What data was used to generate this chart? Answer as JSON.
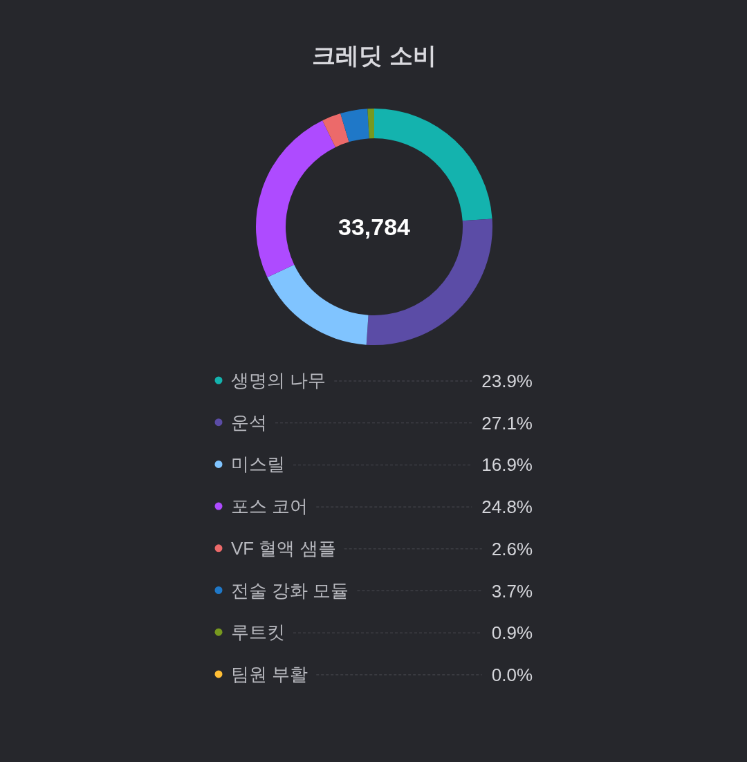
{
  "chart_data": {
    "type": "donut",
    "title": "크레딧 소비",
    "categories": [
      "생명의 나무",
      "운석",
      "미스릴",
      "포스 코어",
      "VF 혈액 샘플",
      "전술 강화 모듈",
      "루트킷",
      "팀원 부활"
    ],
    "values": [
      23.9,
      27.1,
      16.9,
      24.8,
      2.6,
      3.7,
      0.9,
      0.0
    ],
    "value_labels": [
      "23.9%",
      "27.1%",
      "16.9%",
      "24.8%",
      "2.6%",
      "3.7%",
      "0.9%",
      "0.0%"
    ],
    "colors": [
      "#14b3ae",
      "#5b4ca6",
      "#80c4ff",
      "#ae4bff",
      "#ec6a6a",
      "#1f78c8",
      "#77991f",
      "#ffbe35"
    ],
    "annotations": [
      "33,784"
    ],
    "legend": "bottom"
  }
}
